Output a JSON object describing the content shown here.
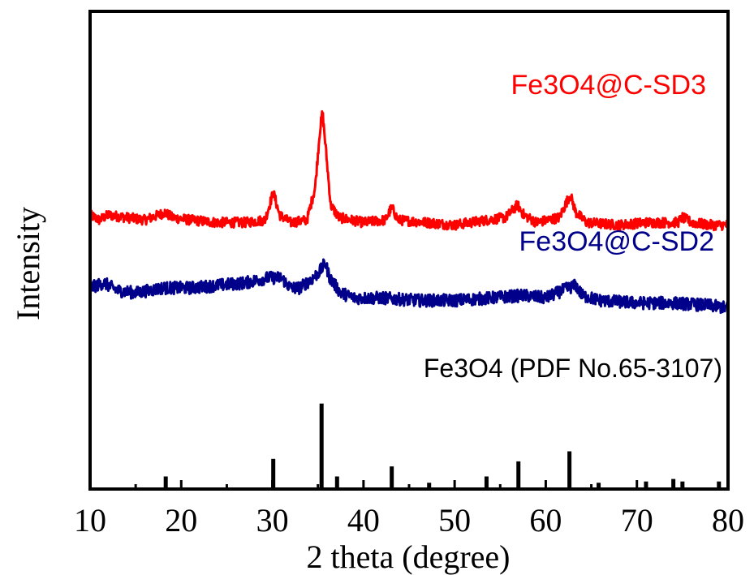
{
  "chart_data": {
    "type": "line",
    "xlabel": "2 theta (degree)",
    "ylabel": "Intensity",
    "xlim": [
      10,
      80
    ],
    "x_ticks": [
      "10",
      "20",
      "30",
      "40",
      "50",
      "60",
      "70",
      "80"
    ],
    "x_tick_values": [
      10,
      20,
      30,
      40,
      50,
      60,
      70,
      80
    ],
    "minor_tick_values": [
      15,
      25,
      35,
      45,
      55,
      65,
      75
    ],
    "ylim": [
      0,
      1.9
    ],
    "grid": false,
    "series": [
      {
        "name": "Fe3O4@C-SD3",
        "color": "#ff0000",
        "baseline": 1.05,
        "noise": 0.02,
        "points": [
          [
            10,
            1.09
          ],
          [
            11,
            1.07
          ],
          [
            12,
            1.09
          ],
          [
            14,
            1.08
          ],
          [
            16,
            1.07
          ],
          [
            17.5,
            1.09
          ],
          [
            18.2,
            1.1
          ],
          [
            19,
            1.08
          ],
          [
            21,
            1.07
          ],
          [
            24,
            1.06
          ],
          [
            27,
            1.06
          ],
          [
            29.2,
            1.07
          ],
          [
            30.1,
            1.18
          ],
          [
            30.8,
            1.09
          ],
          [
            32,
            1.06
          ],
          [
            33.8,
            1.07
          ],
          [
            34.7,
            1.2
          ],
          [
            35.2,
            1.42
          ],
          [
            35.5,
            1.5
          ],
          [
            35.8,
            1.38
          ],
          [
            36.4,
            1.13
          ],
          [
            37.3,
            1.08
          ],
          [
            40,
            1.06
          ],
          [
            42.4,
            1.07
          ],
          [
            43.1,
            1.12
          ],
          [
            43.8,
            1.07
          ],
          [
            47,
            1.06
          ],
          [
            50,
            1.05
          ],
          [
            53.5,
            1.07
          ],
          [
            55.6,
            1.08
          ],
          [
            56.9,
            1.13
          ],
          [
            57.6,
            1.09
          ],
          [
            59,
            1.06
          ],
          [
            61.5,
            1.08
          ],
          [
            62.4,
            1.15
          ],
          [
            62.7,
            1.17
          ],
          [
            63.3,
            1.1
          ],
          [
            64.5,
            1.06
          ],
          [
            68,
            1.05
          ],
          [
            71,
            1.06
          ],
          [
            74.5,
            1.06
          ],
          [
            75,
            1.08
          ],
          [
            76,
            1.06
          ],
          [
            78,
            1.05
          ],
          [
            80,
            1.05
          ]
        ]
      },
      {
        "name": "Fe3O4@C-SD2",
        "color": "#00008b",
        "baseline": 0.75,
        "noise": 0.025,
        "points": [
          [
            10,
            0.8
          ],
          [
            11.5,
            0.82
          ],
          [
            13,
            0.79
          ],
          [
            15,
            0.78
          ],
          [
            18,
            0.8
          ],
          [
            21,
            0.8
          ],
          [
            24,
            0.81
          ],
          [
            27,
            0.82
          ],
          [
            29.5,
            0.84
          ],
          [
            31,
            0.84
          ],
          [
            32,
            0.8
          ],
          [
            33,
            0.8
          ],
          [
            34.5,
            0.84
          ],
          [
            35.3,
            0.87
          ],
          [
            35.8,
            0.9
          ],
          [
            36.3,
            0.84
          ],
          [
            37.5,
            0.78
          ],
          [
            39,
            0.76
          ],
          [
            42,
            0.76
          ],
          [
            46,
            0.75
          ],
          [
            50,
            0.75
          ],
          [
            54,
            0.76
          ],
          [
            57.5,
            0.77
          ],
          [
            60,
            0.76
          ],
          [
            62.5,
            0.8
          ],
          [
            63.3,
            0.81
          ],
          [
            64,
            0.77
          ],
          [
            66,
            0.75
          ],
          [
            70,
            0.74
          ],
          [
            74,
            0.74
          ],
          [
            78,
            0.73
          ],
          [
            80,
            0.72
          ]
        ]
      }
    ],
    "reference": {
      "name": "Fe3O4 (PDF No.65-3107)",
      "color": "#000000",
      "peaks": [
        {
          "x": 18.3,
          "h": 0.05
        },
        {
          "x": 30.1,
          "h": 0.12
        },
        {
          "x": 35.4,
          "h": 0.34
        },
        {
          "x": 37.1,
          "h": 0.05
        },
        {
          "x": 43.1,
          "h": 0.09
        },
        {
          "x": 47.2,
          "h": 0.025
        },
        {
          "x": 53.5,
          "h": 0.05
        },
        {
          "x": 57.0,
          "h": 0.11
        },
        {
          "x": 62.6,
          "h": 0.15
        },
        {
          "x": 65.8,
          "h": 0.025
        },
        {
          "x": 71.0,
          "h": 0.03
        },
        {
          "x": 74.0,
          "h": 0.04
        },
        {
          "x": 75.0,
          "h": 0.03
        },
        {
          "x": 79.0,
          "h": 0.03
        }
      ]
    }
  }
}
